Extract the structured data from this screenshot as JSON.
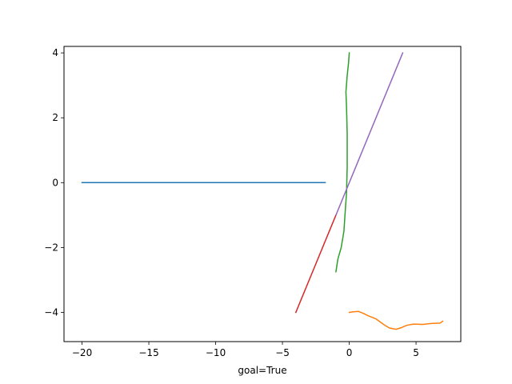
{
  "chart_data": {
    "type": "line",
    "title": "",
    "xlabel": "goal=True",
    "ylabel": "",
    "xlim": [
      -21.35,
      8.35
    ],
    "ylim": [
      -4.9,
      4.2
    ],
    "xticks": [
      -20,
      -15,
      -10,
      -5,
      0,
      5
    ],
    "xtick_labels": [
      "−20",
      "−15",
      "−10",
      "−5",
      "0",
      "5"
    ],
    "yticks": [
      -4,
      -2,
      0,
      2,
      4
    ],
    "ytick_labels": [
      "−4",
      "−2",
      "0",
      "2",
      "4"
    ],
    "grid": false,
    "series": [
      {
        "color": "#1f77b4",
        "points": [
          [
            -20,
            0
          ],
          [
            -1.8,
            0
          ]
        ]
      },
      {
        "color": "#ff7f0e",
        "points": [
          [
            0,
            -4.0
          ],
          [
            0.3,
            -3.98
          ],
          [
            0.7,
            -3.97
          ],
          [
            1.0,
            -4.02
          ],
          [
            1.4,
            -4.1
          ],
          [
            2.0,
            -4.2
          ],
          [
            2.6,
            -4.38
          ],
          [
            3.0,
            -4.48
          ],
          [
            3.5,
            -4.52
          ],
          [
            3.9,
            -4.47
          ],
          [
            4.3,
            -4.4
          ],
          [
            4.8,
            -4.36
          ],
          [
            5.5,
            -4.37
          ],
          [
            6.2,
            -4.34
          ],
          [
            6.8,
            -4.33
          ],
          [
            7.0,
            -4.27
          ]
        ]
      },
      {
        "color": "#2ca02c",
        "points": [
          [
            -1.0,
            -2.75
          ],
          [
            -0.85,
            -2.35
          ],
          [
            -0.6,
            -2.0
          ],
          [
            -0.4,
            -1.5
          ],
          [
            -0.3,
            -0.9
          ],
          [
            -0.2,
            -0.3
          ],
          [
            -0.15,
            0.5
          ],
          [
            -0.15,
            1.5
          ],
          [
            -0.2,
            2.3
          ],
          [
            -0.25,
            2.8
          ],
          [
            -0.15,
            3.3
          ],
          [
            -0.05,
            3.7
          ],
          [
            0,
            4.0
          ]
        ]
      },
      {
        "color": "#d62728",
        "points": [
          [
            -4,
            -4
          ],
          [
            -1.0,
            -1.0
          ]
        ]
      },
      {
        "color": "#9467bd",
        "points": [
          [
            -1.0,
            -1.0
          ],
          [
            4,
            4
          ]
        ]
      }
    ]
  }
}
